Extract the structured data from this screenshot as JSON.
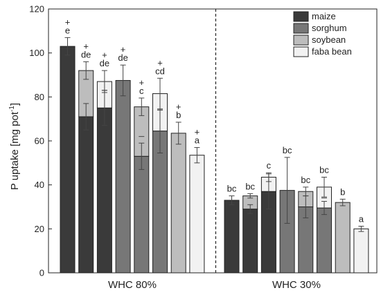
{
  "chart_data": {
    "type": "bar",
    "ylabel": "P uptake [mg pot",
    "ylabel_sup": "-1",
    "ylabel_close": "]",
    "ylim": [
      0,
      120
    ],
    "yticks": [
      0,
      20,
      40,
      60,
      80,
      100,
      120
    ],
    "legend_position": "top-right",
    "groups": [
      {
        "label": "WHC 80%",
        "bars": [
          {
            "segments": [
              {
                "crop": "maize",
                "value": 103
              }
            ],
            "error": 4,
            "letter": "e",
            "plus": "+",
            "mid_marks": []
          },
          {
            "segments": [
              {
                "crop": "maize",
                "value": 71
              },
              {
                "crop": "soybean",
                "value": 21
              }
            ],
            "error": 4,
            "letter": "de",
            "plus": "+",
            "mid_marks": [
              {
                "value": 71,
                "error": 6
              }
            ]
          },
          {
            "segments": [
              {
                "crop": "maize",
                "value": 75
              },
              {
                "crop": "faba bean",
                "value": 12
              }
            ],
            "error": 5,
            "letter": "de",
            "plus": "+",
            "mid_marks": [
              {
                "value": 75,
                "error": 8
              },
              {
                "value": 83,
                "error": 0
              }
            ]
          },
          {
            "segments": [
              {
                "crop": "sorghum",
                "value": 87.5
              }
            ],
            "error": 7,
            "letter": "de",
            "plus": "+",
            "mid_marks": []
          },
          {
            "segments": [
              {
                "crop": "sorghum",
                "value": 53
              },
              {
                "crop": "soybean",
                "value": 22.5
              }
            ],
            "error": 4,
            "letter": "c",
            "plus": "+",
            "mid_marks": [
              {
                "value": 53,
                "error": 6
              },
              {
                "value": 62,
                "error": 0
              }
            ]
          },
          {
            "segments": [
              {
                "crop": "sorghum",
                "value": 64.5
              },
              {
                "crop": "faba bean",
                "value": 17
              }
            ],
            "error": 7,
            "letter": "cd",
            "plus": "+",
            "mid_marks": [
              {
                "value": 64.5,
                "error": 10
              },
              {
                "value": 74,
                "error": 0
              }
            ]
          },
          {
            "segments": [
              {
                "crop": "soybean",
                "value": 63.5
              }
            ],
            "error": 5,
            "letter": "b",
            "plus": "+",
            "mid_marks": []
          },
          {
            "segments": [
              {
                "crop": "faba bean",
                "value": 53.5
              }
            ],
            "error": 3.5,
            "letter": "a",
            "plus": "+",
            "mid_marks": []
          }
        ]
      },
      {
        "label": "WHC 30%",
        "bars": [
          {
            "segments": [
              {
                "crop": "maize",
                "value": 33
              }
            ],
            "error": 2,
            "letter": "bc",
            "plus": "",
            "mid_marks": []
          },
          {
            "segments": [
              {
                "crop": "maize",
                "value": 29
              },
              {
                "crop": "soybean",
                "value": 6
              }
            ],
            "error": 1,
            "letter": "bc",
            "plus": "",
            "mid_marks": [
              {
                "value": 29,
                "error": 2
              }
            ]
          },
          {
            "segments": [
              {
                "crop": "maize",
                "value": 37
              },
              {
                "crop": "faba bean",
                "value": 6.5
              }
            ],
            "error": 2,
            "letter": "c",
            "plus": "",
            "mid_marks": [
              {
                "value": 37,
                "error": 8
              }
            ]
          },
          {
            "segments": [
              {
                "crop": "sorghum",
                "value": 37.5
              }
            ],
            "error": 15,
            "letter": "bc",
            "plus": "",
            "mid_marks": []
          },
          {
            "segments": [
              {
                "crop": "sorghum",
                "value": 30
              },
              {
                "crop": "soybean",
                "value": 7
              }
            ],
            "error": 2,
            "letter": "bc",
            "plus": "",
            "mid_marks": [
              {
                "value": 30,
                "error": 5
              }
            ]
          },
          {
            "segments": [
              {
                "crop": "sorghum",
                "value": 29.5
              },
              {
                "crop": "faba bean",
                "value": 9.5
              }
            ],
            "error": 4.5,
            "letter": "bc",
            "plus": "",
            "mid_marks": [
              {
                "value": 29.5,
                "error": 3
              },
              {
                "value": 34,
                "error": 0
              }
            ]
          },
          {
            "segments": [
              {
                "crop": "soybean",
                "value": 32
              }
            ],
            "error": 1.5,
            "letter": "b",
            "plus": "",
            "mid_marks": []
          },
          {
            "segments": [
              {
                "crop": "faba bean",
                "value": 20
              }
            ],
            "error": 1.2,
            "letter": "a",
            "plus": "",
            "mid_marks": []
          }
        ]
      }
    ],
    "legend": [
      {
        "name": "maize",
        "color": "#3a3a3a"
      },
      {
        "name": "sorghum",
        "color": "#777777"
      },
      {
        "name": "soybean",
        "color": "#bdbdbd"
      },
      {
        "name": "faba bean",
        "color": "#f2f2f2"
      }
    ]
  }
}
